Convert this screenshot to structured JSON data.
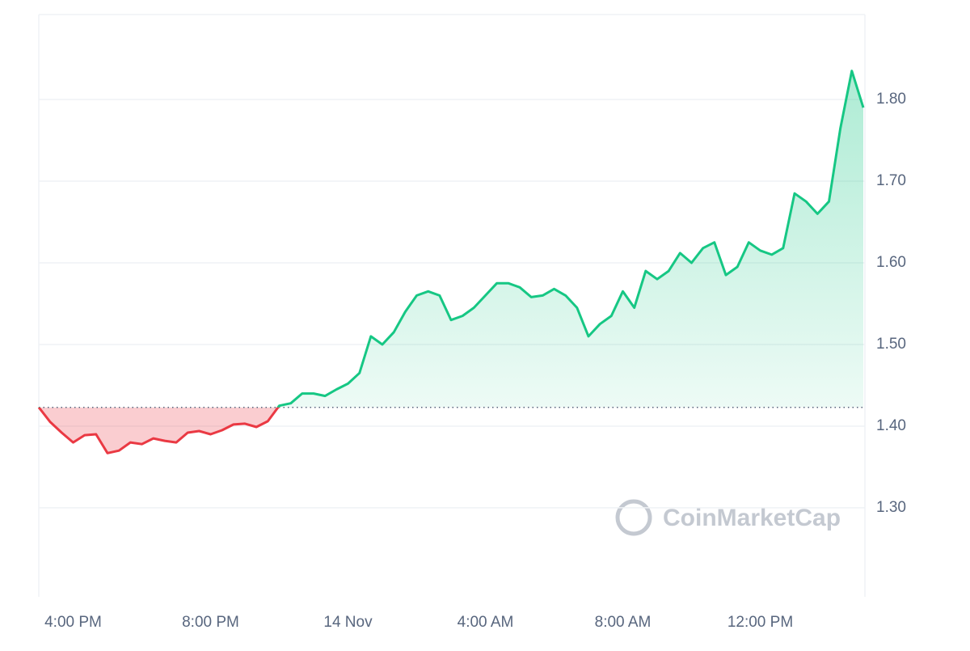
{
  "chart_data": {
    "type": "line",
    "categories": [
      null,
      null,
      null,
      "4:00 PM",
      null,
      null,
      null,
      null,
      null,
      null,
      null,
      null,
      null,
      null,
      null,
      "8:00 PM",
      null,
      null,
      null,
      null,
      null,
      null,
      null,
      null,
      null,
      null,
      null,
      "14 Nov",
      null,
      null,
      null,
      null,
      null,
      null,
      null,
      null,
      null,
      null,
      null,
      "4:00 AM",
      null,
      null,
      null,
      null,
      null,
      null,
      null,
      null,
      null,
      null,
      null,
      "8:00 AM",
      null,
      null,
      null,
      null,
      null,
      null,
      null,
      null,
      null,
      null,
      null,
      "12:00 PM",
      null,
      null,
      null,
      null,
      null,
      null,
      null,
      null,
      null
    ],
    "values": [
      1.423,
      1.405,
      1.392,
      1.38,
      1.389,
      1.39,
      1.367,
      1.37,
      1.38,
      1.378,
      1.385,
      1.382,
      1.38,
      1.392,
      1.394,
      1.39,
      1.395,
      1.402,
      1.403,
      1.399,
      1.406,
      1.425,
      1.428,
      1.44,
      1.44,
      1.437,
      1.445,
      1.452,
      1.465,
      1.51,
      1.5,
      1.515,
      1.54,
      1.56,
      1.565,
      1.56,
      1.53,
      1.535,
      1.545,
      1.56,
      1.575,
      1.575,
      1.57,
      1.558,
      1.56,
      1.568,
      1.56,
      1.545,
      1.51,
      1.525,
      1.535,
      1.565,
      1.545,
      1.59,
      1.58,
      1.59,
      1.612,
      1.6,
      1.618,
      1.625,
      1.585,
      1.595,
      1.625,
      1.615,
      1.61,
      1.618,
      1.685,
      1.675,
      1.66,
      1.675,
      1.765,
      1.835,
      1.79
    ],
    "baseline": 1.423,
    "up_color": "#16c784",
    "down_color": "#ea3943",
    "ylim": [
      1.191,
      1.904
    ],
    "yticks": [
      {
        "value": 1.3,
        "label": "1.30"
      },
      {
        "value": 1.4,
        "label": "1.40"
      },
      {
        "value": 1.5,
        "label": "1.50"
      },
      {
        "value": 1.6,
        "label": "1.60"
      },
      {
        "value": 1.7,
        "label": "1.70"
      },
      {
        "value": 1.8,
        "label": "1.80"
      }
    ],
    "grid": true,
    "watermark": "CoinMarketCap"
  }
}
